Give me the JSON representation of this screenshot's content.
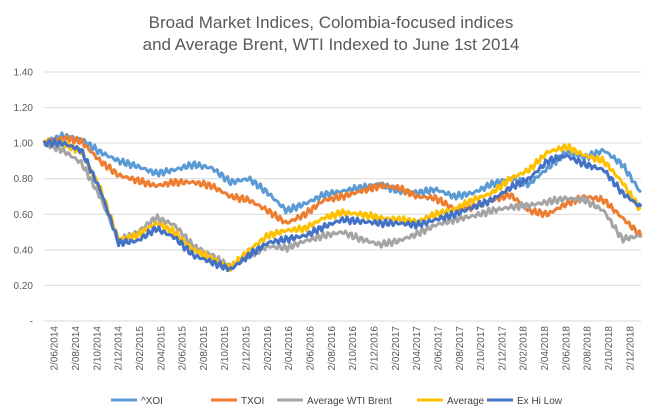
{
  "chart_data": {
    "type": "line",
    "title_lines": [
      "Broad Market Indices, Colombia-focused indices",
      "and Average Brent, WTI Indexed to June 1st 2014"
    ],
    "xlabel": "",
    "ylabel": "",
    "ylim": [
      0,
      1.4
    ],
    "y_ticks": [
      0,
      0.2,
      0.4,
      0.6,
      0.8,
      1.0,
      1.2,
      1.4
    ],
    "y_tick_labels": [
      "-",
      "0.20",
      "0.40",
      "0.60",
      "0.80",
      "1.00",
      "1.20",
      "1.40"
    ],
    "grid": true,
    "legend_position": "bottom",
    "x_tick_labels": [
      "2/06/2014",
      "2/08/2014",
      "2/10/2014",
      "2/12/2014",
      "2/02/2015",
      "2/04/2015",
      "2/06/2015",
      "2/08/2015",
      "2/10/2015",
      "2/12/2015",
      "2/02/2016",
      "2/04/2016",
      "2/06/2016",
      "2/08/2016",
      "2/10/2016",
      "2/12/2016",
      "2/02/2017",
      "2/04/2017",
      "2/06/2017",
      "2/08/2017",
      "2/10/2017",
      "2/12/2017",
      "2/02/2018",
      "2/04/2018",
      "2/06/2018",
      "2/08/2018",
      "2/10/2018",
      "2/12/2018"
    ],
    "series": [
      {
        "name": "^XOI",
        "color": "#5B9BD5",
        "values": [
          1.0,
          1.04,
          1.02,
          0.95,
          0.9,
          0.87,
          0.83,
          0.85,
          0.88,
          0.86,
          0.78,
          0.8,
          0.72,
          0.62,
          0.66,
          0.71,
          0.73,
          0.75,
          0.77,
          0.73,
          0.72,
          0.74,
          0.7,
          0.72,
          0.77,
          0.8,
          0.77,
          0.86,
          0.95,
          0.92,
          0.96,
          0.88,
          0.72
        ]
      },
      {
        "name": "TXOI",
        "color": "#ED7D31",
        "values": [
          1.0,
          1.03,
          1.01,
          0.9,
          0.82,
          0.79,
          0.76,
          0.78,
          0.78,
          0.76,
          0.7,
          0.68,
          0.62,
          0.55,
          0.6,
          0.68,
          0.7,
          0.73,
          0.76,
          0.75,
          0.7,
          0.69,
          0.63,
          0.64,
          0.68,
          0.71,
          0.62,
          0.6,
          0.66,
          0.7,
          0.68,
          0.58,
          0.48
        ]
      },
      {
        "name": "Average WTI Brent",
        "color": "#A5A5A5",
        "values": [
          1.0,
          0.96,
          0.89,
          0.7,
          0.45,
          0.5,
          0.58,
          0.54,
          0.42,
          0.37,
          0.3,
          0.37,
          0.42,
          0.41,
          0.45,
          0.48,
          0.5,
          0.46,
          0.43,
          0.45,
          0.49,
          0.54,
          0.57,
          0.59,
          0.62,
          0.64,
          0.65,
          0.67,
          0.69,
          0.68,
          0.62,
          0.46,
          0.48
        ]
      },
      {
        "name": "Average",
        "color": "#FFC000",
        "values": [
          1.0,
          1.0,
          0.95,
          0.75,
          0.46,
          0.48,
          0.55,
          0.5,
          0.4,
          0.35,
          0.3,
          0.4,
          0.48,
          0.51,
          0.52,
          0.58,
          0.61,
          0.6,
          0.58,
          0.57,
          0.56,
          0.6,
          0.63,
          0.68,
          0.72,
          0.8,
          0.85,
          0.95,
          0.98,
          0.93,
          0.9,
          0.78,
          0.62
        ]
      },
      {
        "name": "Ex Hi Low",
        "color": "#4472C4",
        "values": [
          1.0,
          1.0,
          0.96,
          0.74,
          0.44,
          0.45,
          0.52,
          0.47,
          0.37,
          0.33,
          0.29,
          0.37,
          0.44,
          0.46,
          0.48,
          0.53,
          0.57,
          0.56,
          0.55,
          0.55,
          0.54,
          0.57,
          0.6,
          0.64,
          0.68,
          0.75,
          0.8,
          0.9,
          0.93,
          0.88,
          0.85,
          0.72,
          0.64
        ]
      }
    ]
  }
}
